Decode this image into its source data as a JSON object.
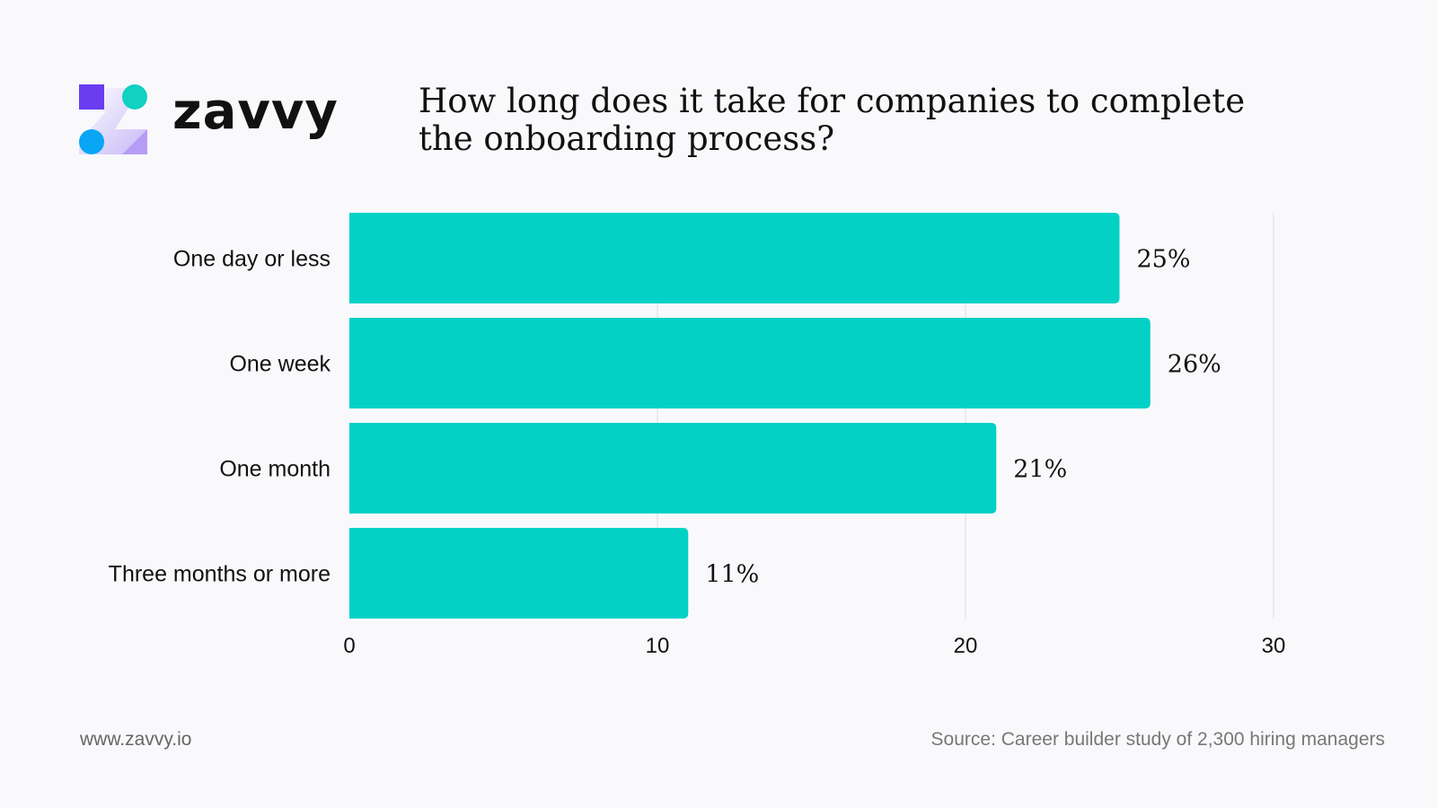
{
  "brand": {
    "name": "zavvy",
    "logo": "zavvy-logo"
  },
  "title": "How long does it take for companies to complete the onboarding process?",
  "colors": {
    "bar": "#03d1c6",
    "grid": "#dddddd",
    "background": "#f9f9fc"
  },
  "chart_data": {
    "type": "bar",
    "orientation": "horizontal",
    "title": "How long does it take for companies to complete the onboarding process?",
    "categories": [
      "One day or less",
      "One week",
      "One month",
      "Three months or more"
    ],
    "values": [
      25,
      26,
      21,
      11
    ],
    "data_labels": [
      "25%",
      "26%",
      "21%",
      "11%"
    ],
    "xticks": [
      "0",
      "10",
      "20",
      "30"
    ],
    "xlim": [
      0,
      30
    ],
    "xlabel": "",
    "ylabel": "",
    "grid": true
  },
  "footer": {
    "url": "www.zavvy.io",
    "source": "Source: Career builder study of 2,300 hiring managers"
  }
}
